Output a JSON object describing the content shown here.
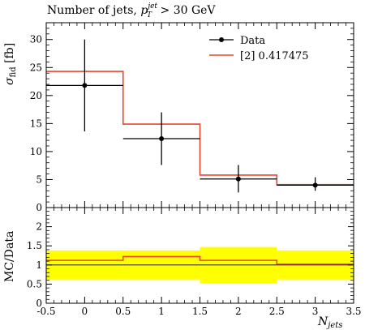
{
  "chart_data": [
    {
      "type": "line",
      "title_text": "Number of jets, ",
      "title_var": "p",
      "title_sub": "T",
      "title_sup": "jet",
      "title_cut": " > 30 GeV",
      "ylabel_main": "σ",
      "ylabel_sub": "fid",
      "ylabel_unit": " [fb]",
      "xlabel_main": "N",
      "xlabel_sub": "jets",
      "xlim": [
        -0.5,
        3.5
      ],
      "ylim": [
        0,
        33
      ],
      "x_ticks": [
        "-0.5",
        "0",
        "0.5",
        "1",
        "1.5",
        "2",
        "2.5",
        "3",
        "3.5"
      ],
      "y_ticks": [
        "0",
        "5",
        "10",
        "15",
        "20",
        "25",
        "30"
      ],
      "legend_position": "top-right",
      "series": [
        {
          "name": "Data",
          "kind": "points",
          "color": "#000000",
          "x": [
            0,
            1,
            2,
            3
          ],
          "y": [
            21.8,
            12.3,
            5.1,
            4.0
          ],
          "xerr_low": [
            -0.5,
            0.5,
            1.5,
            2.5
          ],
          "xerr_high": [
            0.5,
            1.5,
            2.5,
            3.5
          ],
          "yerr_low": [
            13.6,
            7.6,
            2.7,
            3.0
          ],
          "yerr_high": [
            30.0,
            17.0,
            7.6,
            5.4
          ]
        },
        {
          "name": "[2] 0.417475",
          "kind": "histogram",
          "color": "#e8472d",
          "bin_edges": [
            -0.5,
            0.5,
            1.5,
            2.5,
            3.5
          ],
          "values": [
            24.3,
            14.9,
            5.8,
            4.1
          ]
        }
      ]
    },
    {
      "type": "line",
      "ylabel": "MC/Data",
      "xlim": [
        -0.5,
        3.5
      ],
      "ylim": [
        0,
        2.5
      ],
      "y_ticks": [
        "0",
        "0.5",
        "1",
        "1.5",
        "2"
      ],
      "band_color": "#ffff00",
      "ratio_color": "#e8472d",
      "bin_edges": [
        -0.5,
        0.5,
        1.5,
        2.5,
        3.5
      ],
      "band_low": [
        0.62,
        0.62,
        0.52,
        0.62
      ],
      "band_high": [
        1.38,
        1.38,
        1.47,
        1.38
      ],
      "ratio": [
        1.12,
        1.22,
        1.12,
        1.02
      ]
    }
  ]
}
